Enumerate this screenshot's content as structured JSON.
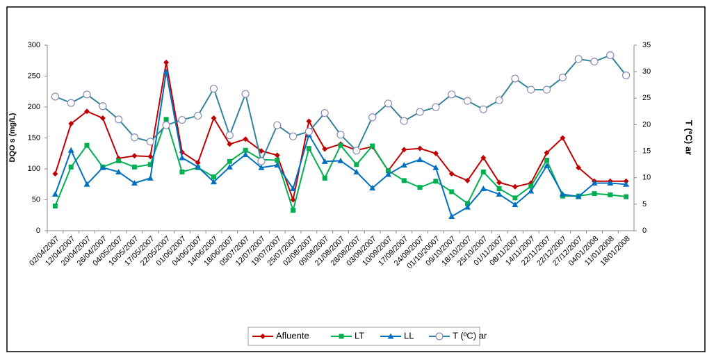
{
  "chart_data": {
    "type": "line",
    "ylabel": "DQO s (mg/L)",
    "y2label": "T (ºC) ar",
    "categories": [
      "02/04/2007",
      "12/04/2007",
      "20/04/2007",
      "26/04/2007",
      "04/05/2007",
      "10/05/2007",
      "17/05/2007",
      "22/05/2007",
      "01/06/2007",
      "04/06/2007",
      "14/06/2007",
      "18/06/2007",
      "05/07/2007",
      "12/07/2007",
      "19/07/2007",
      "25/07/2007",
      "02/08/2007",
      "09/08/2007",
      "21/08/2007",
      "28/08/2007",
      "03/09/2007",
      "10/09/2007",
      "17/09/2007",
      "24/09/2007",
      "01/10/20007",
      "09/10/2007",
      "18/10/2007",
      "25/10/2007",
      "01/11/2007",
      "08/11/2007",
      "14/11/2007",
      "22/11/2007",
      "22/12/2007",
      "27/12/2007",
      "04/01/2008",
      "11/01/2008",
      "18/01/2008"
    ],
    "series": [
      {
        "name": "Afluente",
        "color": "#c00000",
        "marker": "diamond",
        "values": [
          92,
          173,
          193,
          182,
          117,
          121,
          120,
          272,
          127,
          110,
          182,
          140,
          148,
          129,
          122,
          50,
          177,
          132,
          140,
          130,
          136,
          97,
          131,
          133,
          125,
          92,
          81,
          118,
          78,
          71,
          77,
          126,
          150,
          102,
          80,
          80,
          80
        ]
      },
      {
        "name": "LT",
        "color": "#00b050",
        "marker": "square",
        "values": [
          40,
          103,
          138,
          103,
          113,
          103,
          107,
          180,
          95,
          102,
          87,
          112,
          130,
          115,
          114,
          33,
          133,
          85,
          138,
          107,
          137,
          97,
          81,
          70,
          80,
          63,
          44,
          95,
          68,
          53,
          72,
          114,
          56,
          56,
          60,
          58,
          55
        ]
      },
      {
        "name": "LL",
        "color": "#0070c0",
        "marker": "triangle",
        "values": [
          59,
          130,
          75,
          102,
          95,
          77,
          85,
          257,
          118,
          103,
          79,
          103,
          123,
          102,
          106,
          68,
          155,
          112,
          113,
          95,
          69,
          91,
          106,
          115,
          102,
          23,
          38,
          68,
          59,
          42,
          64,
          105,
          59,
          55,
          77,
          77,
          75
        ]
      },
      {
        "name": "T (ºC) ar",
        "color": "#31849b",
        "marker": "circle",
        "axis": "y2",
        "values": [
          25.3,
          24.1,
          25.7,
          23.5,
          21.0,
          17.6,
          16.8,
          19.9,
          20.9,
          21.7,
          26.8,
          18.0,
          25.8,
          13.1,
          19.9,
          17.8,
          18.7,
          22.2,
          18.1,
          15.1,
          21.4,
          24.0,
          20.7,
          22.4,
          23.3,
          25.7,
          24.5,
          22.9,
          24.6,
          28.7,
          26.6,
          26.6,
          28.9,
          32.4,
          31.9,
          33.1,
          29.3
        ]
      }
    ],
    "ylim": [
      0,
      300
    ],
    "yticks": [
      0,
      50,
      100,
      150,
      200,
      250,
      300
    ],
    "y2lim": [
      0,
      35
    ],
    "y2ticks": [
      0,
      5,
      10,
      15,
      20,
      25,
      30,
      35
    ],
    "legend": "bottom"
  }
}
